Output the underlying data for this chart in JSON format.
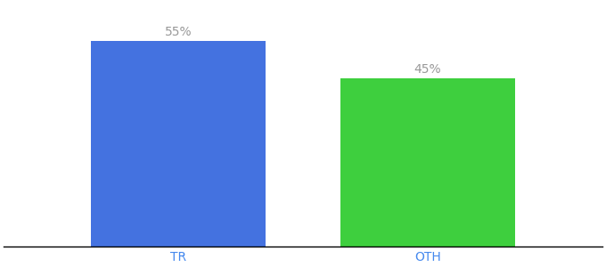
{
  "categories": [
    "TR",
    "OTH"
  ],
  "values": [
    55,
    45
  ],
  "bar_colors": [
    "#4472e0",
    "#3ecf3e"
  ],
  "label_texts": [
    "55%",
    "45%"
  ],
  "label_color": "#999999",
  "ylim": [
    0,
    65
  ],
  "background_color": "#ffffff",
  "tick_color": "#4488ee",
  "label_fontsize": 10,
  "tick_fontsize": 10,
  "bar_width": 0.7
}
